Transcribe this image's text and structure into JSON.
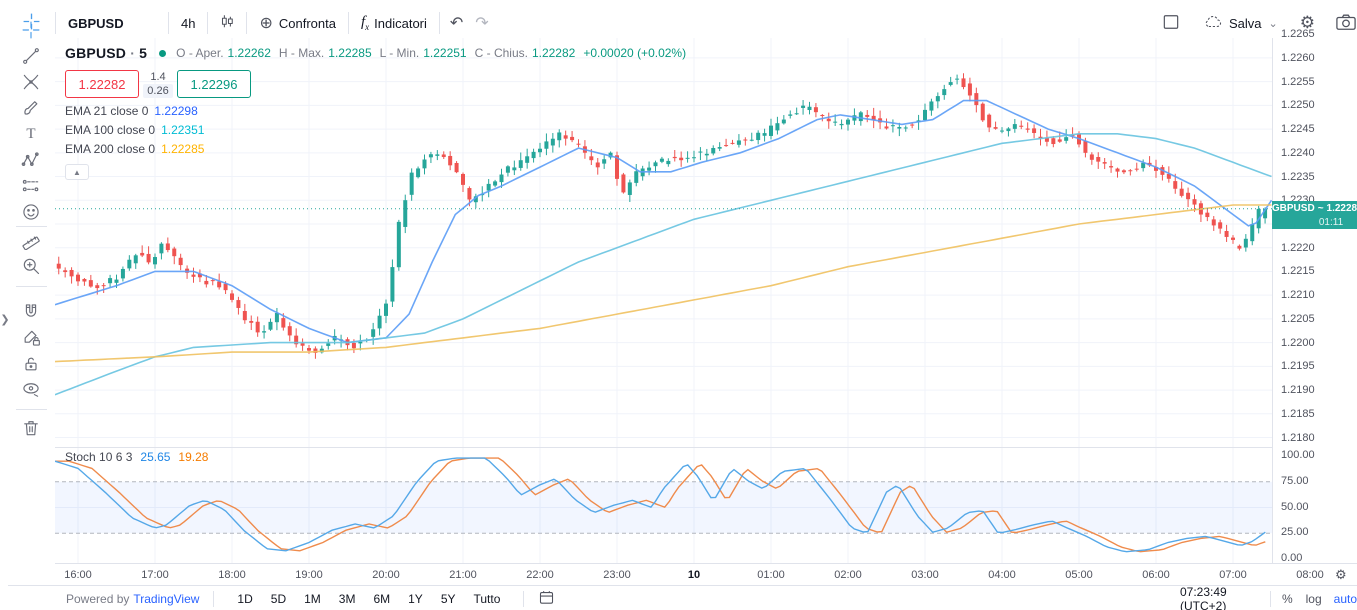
{
  "toolbar": {
    "symbol": "GBPUSD",
    "interval": "4h",
    "compare_label": "Confronta",
    "indicators_label": "Indicatori",
    "save_label": "Salva"
  },
  "legend": {
    "symbol": "GBPUSD",
    "separator": "·",
    "interval": "5",
    "o_label": "O - Aper.",
    "o": "1.22262",
    "h_label": "H - Max.",
    "h": "1.22285",
    "l_label": "L - Min.",
    "l": "1.22251",
    "c_label": "C - Chius.",
    "c": "1.22282",
    "change": "+0.00020 (+0.02%)",
    "bid": "1.22282",
    "spread_top": "1.4",
    "spread_bottom": "0.26",
    "ask": "1.22296",
    "emas": [
      {
        "label": "EMA 21 close 0",
        "value": "1.22298",
        "color": "#2962ff"
      },
      {
        "label": "EMA 100 close 0",
        "value": "1.22351",
        "color": "#00bcd4"
      },
      {
        "label": "EMA 200 close 0",
        "value": "1.22285",
        "color": "#ffb300"
      }
    ],
    "collapse_glyph": "▲"
  },
  "stoch_legend": {
    "label": "Stoch 10 6 3",
    "k": "25.65",
    "d": "19.28",
    "k_color": "#2086e5",
    "d_color": "#f57c00"
  },
  "price_tag": {
    "symbol": "GBPUSD",
    "sep": "~",
    "price": "1.2228",
    "countdown": "01:11",
    "color": "#26a69a"
  },
  "bottom": {
    "powered": "Powered by",
    "brand": "TradingView",
    "ranges": [
      "1D",
      "5D",
      "1M",
      "3M",
      "6M",
      "1Y",
      "5Y",
      "Tutto"
    ],
    "clock": "07:23:49 (UTC+2)",
    "percent": "%",
    "log": "log",
    "auto": "auto"
  },
  "icons": {
    "compare": "⊕",
    "undo": "↶",
    "redo": "↷",
    "gear": "⚙",
    "chevron_down": "⌄",
    "edge_arrow": "❯"
  },
  "colors": {
    "up": "#26a69a",
    "down": "#ef5350",
    "accent": "#2962ff",
    "grid": "#f0f3fa",
    "teal": "#089981",
    "red": "#f23645"
  },
  "chart_data": {
    "type": "candlestick",
    "symbol": "GBPUSD",
    "interval_minutes": 5,
    "x_unit": "hours_since_16:00",
    "x_range": [
      -0.3,
      15.55
    ],
    "visible_price_range": [
      1.2178,
      1.22642
    ],
    "grid": true,
    "price_ticks": [
      1.2265,
      1.226,
      1.2255,
      1.225,
      1.2245,
      1.224,
      1.2235,
      1.223,
      1.2225,
      1.222,
      1.2215,
      1.221,
      1.2205,
      1.22,
      1.2195,
      1.219,
      1.2185,
      1.218
    ],
    "time_ticks": [
      {
        "label": "16:00",
        "h": 0
      },
      {
        "label": "17:00",
        "h": 1
      },
      {
        "label": "18:00",
        "h": 2
      },
      {
        "label": "19:00",
        "h": 3
      },
      {
        "label": "20:00",
        "h": 4
      },
      {
        "label": "21:00",
        "h": 5
      },
      {
        "label": "22:00",
        "h": 6
      },
      {
        "label": "23:00",
        "h": 7
      },
      {
        "label": "10",
        "h": 8,
        "bold": true
      },
      {
        "label": "01:00",
        "h": 9
      },
      {
        "label": "02:00",
        "h": 10
      },
      {
        "label": "03:00",
        "h": 11
      },
      {
        "label": "04:00",
        "h": 12
      },
      {
        "label": "05:00",
        "h": 13
      },
      {
        "label": "06:00",
        "h": 14
      },
      {
        "label": "07:00",
        "h": 15
      },
      {
        "label": "08:00",
        "h": 16
      }
    ],
    "ohlc_last": {
      "open": 1.22262,
      "high": 1.22285,
      "low": 1.22251,
      "close": 1.22282,
      "change": "+0.00020 (+0.02%)"
    },
    "current_price": 1.22282,
    "price_path_anchors": [
      [
        -0.3,
        1.2217
      ],
      [
        -0.1,
        1.2215
      ],
      [
        0.1,
        1.2213
      ],
      [
        0.35,
        1.2212
      ],
      [
        0.6,
        1.2214
      ],
      [
        0.85,
        1.2219
      ],
      [
        1.0,
        1.2217
      ],
      [
        1.2,
        1.2221
      ],
      [
        1.45,
        1.2215
      ],
      [
        1.7,
        1.2213
      ],
      [
        1.95,
        1.2212
      ],
      [
        2.2,
        1.2206
      ],
      [
        2.45,
        1.2202
      ],
      [
        2.65,
        1.2206
      ],
      [
        2.9,
        1.22
      ],
      [
        3.15,
        1.2198
      ],
      [
        3.4,
        1.2201
      ],
      [
        3.65,
        1.2199
      ],
      [
        3.9,
        1.2202
      ],
      [
        4.1,
        1.2209
      ],
      [
        4.25,
        1.2225
      ],
      [
        4.4,
        1.2235
      ],
      [
        4.6,
        1.2239
      ],
      [
        4.8,
        1.224
      ],
      [
        5.0,
        1.2236
      ],
      [
        5.15,
        1.223
      ],
      [
        5.35,
        1.2232
      ],
      [
        5.6,
        1.2236
      ],
      [
        5.85,
        1.2238
      ],
      [
        6.1,
        1.2241
      ],
      [
        6.35,
        1.2244
      ],
      [
        6.6,
        1.2241
      ],
      [
        6.8,
        1.2237
      ],
      [
        7.0,
        1.224
      ],
      [
        7.15,
        1.2231
      ],
      [
        7.35,
        1.2236
      ],
      [
        7.6,
        1.2238
      ],
      [
        7.9,
        1.2239
      ],
      [
        8.2,
        1.224
      ],
      [
        8.6,
        1.2242
      ],
      [
        9.0,
        1.2244
      ],
      [
        9.3,
        1.2248
      ],
      [
        9.55,
        1.225
      ],
      [
        9.8,
        1.2247
      ],
      [
        10.0,
        1.2246
      ],
      [
        10.25,
        1.2248
      ],
      [
        10.5,
        1.2246
      ],
      [
        10.75,
        1.2245
      ],
      [
        11.0,
        1.2247
      ],
      [
        11.2,
        1.2251
      ],
      [
        11.45,
        1.2256
      ],
      [
        11.65,
        1.2253
      ],
      [
        11.85,
        1.2247
      ],
      [
        12.05,
        1.2244
      ],
      [
        12.3,
        1.2246
      ],
      [
        12.55,
        1.2243
      ],
      [
        12.8,
        1.2242
      ],
      [
        13.0,
        1.2244
      ],
      [
        13.2,
        1.2239
      ],
      [
        13.45,
        1.2237
      ],
      [
        13.7,
        1.2236
      ],
      [
        13.95,
        1.2238
      ],
      [
        14.2,
        1.2235
      ],
      [
        14.45,
        1.2231
      ],
      [
        14.7,
        1.2227
      ],
      [
        14.95,
        1.2223
      ],
      [
        15.15,
        1.222
      ],
      [
        15.28,
        1.2222
      ],
      [
        15.42,
        1.2228
      ]
    ],
    "overlays": [
      {
        "name": "EMA 21",
        "line_color": "#5b9cf6",
        "last": 1.22298,
        "anchors": [
          [
            -0.3,
            1.2208
          ],
          [
            0.5,
            1.2212
          ],
          [
            1.0,
            1.2215
          ],
          [
            1.5,
            1.2215
          ],
          [
            2.0,
            1.2212
          ],
          [
            2.5,
            1.2207
          ],
          [
            3.0,
            1.2203
          ],
          [
            3.5,
            1.22
          ],
          [
            4.0,
            1.2201
          ],
          [
            4.3,
            1.2206
          ],
          [
            4.6,
            1.2217
          ],
          [
            4.9,
            1.2227
          ],
          [
            5.2,
            1.2231
          ],
          [
            5.5,
            1.2233
          ],
          [
            6.0,
            1.2237
          ],
          [
            6.5,
            1.2241
          ],
          [
            7.0,
            1.2239
          ],
          [
            7.3,
            1.2236
          ],
          [
            7.7,
            1.2236
          ],
          [
            8.1,
            1.2238
          ],
          [
            8.6,
            1.224
          ],
          [
            9.1,
            1.2243
          ],
          [
            9.6,
            1.2247
          ],
          [
            9.9,
            1.2248
          ],
          [
            10.3,
            1.2247
          ],
          [
            10.7,
            1.2246
          ],
          [
            11.1,
            1.2247
          ],
          [
            11.5,
            1.2251
          ],
          [
            11.8,
            1.2251
          ],
          [
            12.2,
            1.2248
          ],
          [
            12.6,
            1.2245
          ],
          [
            13.0,
            1.2243
          ],
          [
            13.5,
            1.224
          ],
          [
            14.0,
            1.2237
          ],
          [
            14.5,
            1.2233
          ],
          [
            15.0,
            1.2227
          ],
          [
            15.25,
            1.2224
          ],
          [
            15.5,
            1.223
          ]
        ]
      },
      {
        "name": "EMA 100",
        "line_color": "#67c3e0",
        "last": 1.22351,
        "anchors": [
          [
            -0.3,
            1.2189
          ],
          [
            0.5,
            1.2194
          ],
          [
            1.0,
            1.2197
          ],
          [
            1.5,
            1.2199
          ],
          [
            2.5,
            1.22
          ],
          [
            3.5,
            1.22
          ],
          [
            4.5,
            1.2202
          ],
          [
            5.0,
            1.2205
          ],
          [
            5.5,
            1.2209
          ],
          [
            6.0,
            1.2213
          ],
          [
            6.5,
            1.2217
          ],
          [
            7.0,
            1.222
          ],
          [
            7.5,
            1.2223
          ],
          [
            8.0,
            1.2226
          ],
          [
            8.5,
            1.2228
          ],
          [
            9.0,
            1.223
          ],
          [
            9.5,
            1.2232
          ],
          [
            10.0,
            1.2234
          ],
          [
            10.5,
            1.2236
          ],
          [
            11.0,
            1.2238
          ],
          [
            11.5,
            1.224
          ],
          [
            12.0,
            1.2242
          ],
          [
            12.5,
            1.2243
          ],
          [
            13.0,
            1.2244
          ],
          [
            13.5,
            1.2244
          ],
          [
            14.0,
            1.2243
          ],
          [
            14.5,
            1.2241
          ],
          [
            15.0,
            1.2238
          ],
          [
            15.5,
            1.2235
          ]
        ]
      },
      {
        "name": "EMA 200",
        "line_color": "#f0c15f",
        "last": 1.22285,
        "anchors": [
          [
            -0.3,
            1.2196
          ],
          [
            1.0,
            1.2197
          ],
          [
            2.0,
            1.2198
          ],
          [
            3.0,
            1.2198
          ],
          [
            4.0,
            1.2199
          ],
          [
            5.0,
            1.2201
          ],
          [
            6.0,
            1.2203
          ],
          [
            7.0,
            1.2206
          ],
          [
            8.0,
            1.2209
          ],
          [
            9.0,
            1.2212
          ],
          [
            10.0,
            1.2216
          ],
          [
            11.0,
            1.2219
          ],
          [
            12.0,
            1.2222
          ],
          [
            13.0,
            1.2225
          ],
          [
            14.0,
            1.2227
          ],
          [
            15.0,
            1.2229
          ],
          [
            15.5,
            1.2229
          ]
        ]
      }
    ],
    "indicator": {
      "name": "Stoch",
      "params": [
        10,
        6,
        3
      ],
      "k_last": 25.65,
      "d_last": 19.28,
      "range": [
        0,
        100
      ],
      "bands": [
        25,
        75
      ],
      "ticks": [
        100,
        75,
        50,
        25,
        0
      ],
      "k_color": "#55a8e8",
      "d_color": "#ef8b4c",
      "band_fill": "rgba(41,98,255,0.06)",
      "d_lag_hours": 0.18,
      "k_anchors": [
        [
          -0.3,
          95
        ],
        [
          0,
          88
        ],
        [
          0.35,
          65
        ],
        [
          0.7,
          40
        ],
        [
          1.0,
          30
        ],
        [
          1.15,
          33
        ],
        [
          1.45,
          52
        ],
        [
          1.65,
          57
        ],
        [
          1.9,
          48
        ],
        [
          2.15,
          28
        ],
        [
          2.45,
          10
        ],
        [
          2.7,
          8
        ],
        [
          3.0,
          16
        ],
        [
          3.3,
          28
        ],
        [
          3.6,
          34
        ],
        [
          3.85,
          30
        ],
        [
          4.1,
          42
        ],
        [
          4.4,
          75
        ],
        [
          4.65,
          95
        ],
        [
          4.9,
          98
        ],
        [
          5.3,
          98
        ],
        [
          5.55,
          80
        ],
        [
          5.75,
          62
        ],
        [
          6.0,
          72
        ],
        [
          6.2,
          78
        ],
        [
          6.45,
          58
        ],
        [
          6.7,
          45
        ],
        [
          6.95,
          52
        ],
        [
          7.2,
          57
        ],
        [
          7.45,
          50
        ],
        [
          7.6,
          68
        ],
        [
          7.9,
          93
        ],
        [
          8.05,
          80
        ],
        [
          8.25,
          56
        ],
        [
          8.5,
          88
        ],
        [
          8.7,
          76
        ],
        [
          8.9,
          68
        ],
        [
          9.15,
          85
        ],
        [
          9.45,
          88
        ],
        [
          9.75,
          60
        ],
        [
          10.05,
          30
        ],
        [
          10.25,
          25
        ],
        [
          10.5,
          65
        ],
        [
          10.65,
          72
        ],
        [
          10.9,
          42
        ],
        [
          11.1,
          26
        ],
        [
          11.3,
          30
        ],
        [
          11.55,
          45
        ],
        [
          11.75,
          47
        ],
        [
          11.95,
          25
        ],
        [
          12.15,
          28
        ],
        [
          12.4,
          33
        ],
        [
          12.65,
          37
        ],
        [
          12.85,
          30
        ],
        [
          13.1,
          22
        ],
        [
          13.35,
          12
        ],
        [
          13.6,
          7
        ],
        [
          13.9,
          9
        ],
        [
          14.15,
          16
        ],
        [
          14.4,
          20
        ],
        [
          14.65,
          22
        ],
        [
          14.9,
          17
        ],
        [
          15.1,
          13
        ],
        [
          15.25,
          17
        ],
        [
          15.42,
          26
        ]
      ]
    }
  }
}
